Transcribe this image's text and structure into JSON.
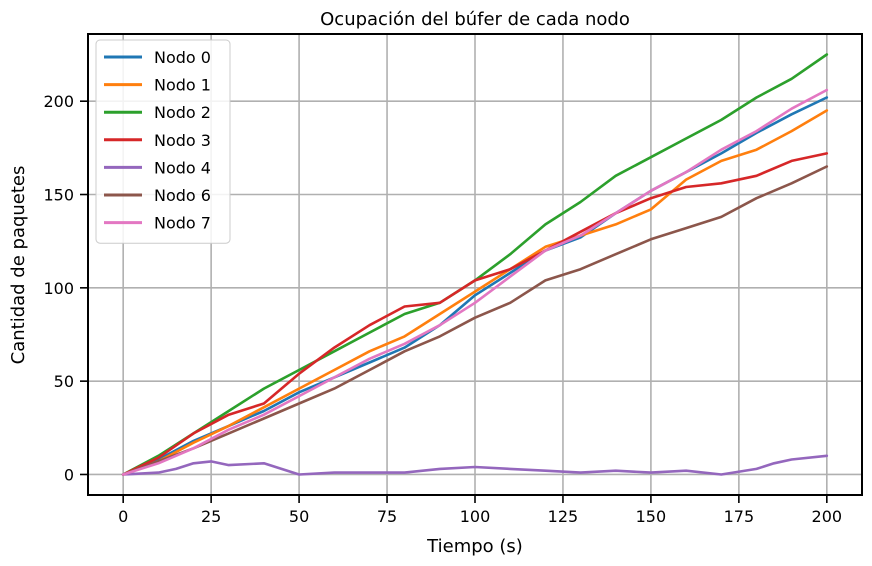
{
  "chart_data": {
    "type": "line",
    "title": "Ocupación del búfer de cada nodo",
    "xlabel": "Tiempo (s)",
    "ylabel": "Cantidad de paquetes",
    "xlim": [
      -10,
      210
    ],
    "ylim": [
      -11,
      236
    ],
    "xticks": [
      0,
      25,
      50,
      75,
      100,
      125,
      150,
      175,
      200
    ],
    "yticks": [
      0,
      50,
      100,
      150,
      200
    ],
    "grid": true,
    "legend_position": "top-left",
    "series": [
      {
        "name": "Nodo 0",
        "color": "#1f77b4",
        "x": [
          0,
          10,
          20,
          30,
          40,
          50,
          60,
          70,
          80,
          90,
          100,
          110,
          120,
          130,
          140,
          150,
          160,
          170,
          180,
          190,
          200
        ],
        "y": [
          0,
          8,
          18,
          26,
          34,
          44,
          52,
          60,
          68,
          80,
          96,
          108,
          120,
          127,
          140,
          152,
          162,
          172,
          183,
          193,
          202
        ]
      },
      {
        "name": "Nodo 1",
        "color": "#ff7f0e",
        "x": [
          0,
          10,
          20,
          30,
          40,
          50,
          60,
          70,
          80,
          90,
          100,
          110,
          120,
          130,
          140,
          150,
          160,
          170,
          180,
          190,
          200
        ],
        "y": [
          0,
          7,
          17,
          26,
          36,
          46,
          56,
          66,
          74,
          86,
          98,
          110,
          122,
          128,
          134,
          142,
          158,
          168,
          174,
          184,
          195
        ]
      },
      {
        "name": "Nodo 2",
        "color": "#2ca02c",
        "x": [
          0,
          10,
          20,
          30,
          40,
          50,
          60,
          70,
          80,
          90,
          100,
          110,
          120,
          130,
          140,
          150,
          160,
          170,
          180,
          190,
          200
        ],
        "y": [
          0,
          10,
          22,
          34,
          46,
          56,
          66,
          76,
          86,
          92,
          104,
          118,
          134,
          146,
          160,
          170,
          180,
          190,
          202,
          212,
          225
        ]
      },
      {
        "name": "Nodo 3",
        "color": "#d62728",
        "x": [
          0,
          10,
          20,
          30,
          40,
          50,
          60,
          70,
          80,
          90,
          100,
          110,
          120,
          130,
          140,
          150,
          160,
          170,
          180,
          190,
          200
        ],
        "y": [
          0,
          9,
          22,
          32,
          38,
          54,
          68,
          80,
          90,
          92,
          104,
          110,
          120,
          130,
          140,
          148,
          154,
          156,
          160,
          168,
          172
        ]
      },
      {
        "name": "Nodo 4",
        "color": "#9467bd",
        "x": [
          0,
          10,
          15,
          20,
          25,
          30,
          40,
          45,
          50,
          60,
          70,
          80,
          90,
          100,
          110,
          120,
          130,
          140,
          150,
          160,
          170,
          180,
          185,
          190,
          200
        ],
        "y": [
          0,
          1,
          3,
          6,
          7,
          5,
          6,
          3,
          0,
          1,
          1,
          1,
          3,
          4,
          3,
          2,
          1,
          2,
          1,
          2,
          0,
          3,
          6,
          8,
          10
        ]
      },
      {
        "name": "Nodo 6",
        "color": "#8c564b",
        "x": [
          0,
          10,
          20,
          30,
          40,
          50,
          60,
          70,
          80,
          90,
          100,
          110,
          120,
          130,
          140,
          150,
          160,
          170,
          180,
          190,
          200
        ],
        "y": [
          0,
          7,
          14,
          22,
          30,
          38,
          46,
          56,
          66,
          74,
          84,
          92,
          104,
          110,
          118,
          126,
          132,
          138,
          148,
          156,
          165
        ]
      },
      {
        "name": "Nodo 7",
        "color": "#e377c2",
        "x": [
          0,
          10,
          20,
          30,
          40,
          50,
          60,
          70,
          80,
          90,
          100,
          110,
          120,
          130,
          140,
          150,
          160,
          170,
          180,
          190,
          200
        ],
        "y": [
          0,
          6,
          14,
          24,
          32,
          42,
          52,
          62,
          70,
          80,
          92,
          106,
          120,
          128,
          140,
          152,
          162,
          174,
          184,
          196,
          206
        ]
      }
    ]
  }
}
